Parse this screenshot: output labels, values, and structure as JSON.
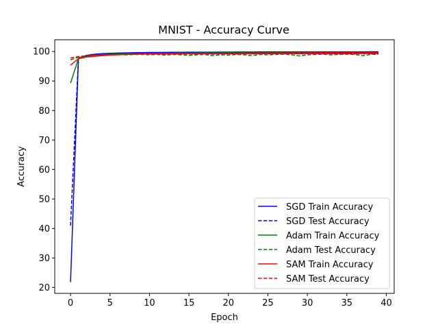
{
  "chart_data": {
    "type": "line",
    "title": "MNIST - Accuracy Curve",
    "xlabel": "Epoch",
    "ylabel": "Accuracy",
    "xlim": [
      -2,
      41
    ],
    "ylim": [
      18,
      104
    ],
    "xticks": [
      0,
      5,
      10,
      15,
      20,
      25,
      30,
      35,
      40
    ],
    "yticks": [
      20,
      30,
      40,
      50,
      60,
      70,
      80,
      90,
      100
    ],
    "grid": false,
    "legend_position": "bottom-right",
    "series": [
      {
        "name": "SGD Train Accuracy",
        "color": "#0000ff",
        "linestyle": "solid",
        "x": [
          0,
          1,
          2,
          3,
          4,
          5,
          6,
          7,
          8,
          9,
          10,
          11,
          12,
          13,
          14,
          15,
          16,
          17,
          18,
          19,
          20,
          21,
          22,
          23,
          24,
          25,
          26,
          27,
          28,
          29,
          30,
          31,
          32,
          33,
          34,
          35,
          36,
          37,
          38,
          39
        ],
        "values": [
          21.8,
          97.5,
          98.7,
          99.1,
          99.3,
          99.4,
          99.5,
          99.55,
          99.6,
          99.65,
          99.7,
          99.7,
          99.72,
          99.75,
          99.76,
          99.78,
          99.8,
          99.8,
          99.8,
          99.82,
          99.83,
          99.84,
          99.85,
          99.85,
          99.86,
          99.86,
          99.87,
          99.87,
          99.88,
          99.88,
          99.89,
          99.89,
          99.9,
          99.9,
          99.9,
          99.9,
          99.91,
          99.91,
          99.92,
          99.92
        ]
      },
      {
        "name": "SGD Test Accuracy",
        "color": "#0000ff",
        "linestyle": "dashed",
        "x": [
          0,
          1,
          2,
          3,
          4,
          5,
          6,
          7,
          8,
          9,
          10,
          11,
          12,
          13,
          14,
          15,
          16,
          17,
          18,
          19,
          20,
          21,
          22,
          23,
          24,
          25,
          26,
          27,
          28,
          29,
          30,
          31,
          32,
          33,
          34,
          35,
          36,
          37,
          38,
          39
        ],
        "values": [
          41.0,
          97.8,
          98.5,
          98.8,
          98.9,
          99.0,
          99.1,
          99.1,
          99.15,
          99.2,
          99.2,
          99.2,
          99.25,
          99.2,
          99.25,
          99.3,
          99.25,
          99.3,
          99.3,
          99.3,
          99.3,
          99.3,
          99.35,
          99.3,
          99.35,
          99.3,
          99.35,
          99.35,
          99.35,
          99.3,
          99.35,
          99.35,
          99.4,
          99.35,
          99.35,
          99.4,
          99.35,
          99.4,
          99.4,
          99.4
        ]
      },
      {
        "name": "Adam Train Accuracy",
        "color": "#008000",
        "linestyle": "solid",
        "x": [
          0,
          1,
          2,
          3,
          4,
          5,
          6,
          7,
          8,
          9,
          10,
          11,
          12,
          13,
          14,
          15,
          16,
          17,
          18,
          19,
          20,
          21,
          22,
          23,
          24,
          25,
          26,
          27,
          28,
          29,
          30,
          31,
          32,
          33,
          34,
          35,
          36,
          37,
          38,
          39
        ],
        "values": [
          89.3,
          97.6,
          98.4,
          98.8,
          99.0,
          99.1,
          99.2,
          99.25,
          99.3,
          99.35,
          99.4,
          99.4,
          99.45,
          99.45,
          99.5,
          99.5,
          99.5,
          99.55,
          99.55,
          99.55,
          99.6,
          99.6,
          99.6,
          99.6,
          99.6,
          99.65,
          99.65,
          99.65,
          99.65,
          99.65,
          99.7,
          99.7,
          99.7,
          99.7,
          99.7,
          99.7,
          99.7,
          99.7,
          99.7,
          99.7
        ]
      },
      {
        "name": "Adam Test Accuracy",
        "color": "#008000",
        "linestyle": "dashed",
        "x": [
          0,
          1,
          2,
          3,
          4,
          5,
          6,
          7,
          8,
          9,
          10,
          11,
          12,
          13,
          14,
          15,
          16,
          17,
          18,
          19,
          20,
          21,
          22,
          23,
          24,
          25,
          26,
          27,
          28,
          29,
          30,
          31,
          32,
          33,
          34,
          35,
          36,
          37,
          38,
          39
        ],
        "values": [
          97.2,
          98.1,
          98.5,
          98.7,
          98.8,
          98.9,
          99.0,
          98.9,
          99.0,
          99.0,
          98.9,
          99.0,
          98.8,
          99.0,
          98.9,
          98.7,
          98.9,
          99.0,
          98.6,
          98.9,
          98.8,
          99.0,
          98.9,
          98.6,
          99.0,
          98.9,
          99.0,
          99.1,
          98.9,
          98.5,
          98.9,
          99.0,
          99.1,
          98.9,
          99.0,
          99.1,
          99.0,
          98.6,
          99.0,
          99.1
        ]
      },
      {
        "name": "SAM Train Accuracy",
        "color": "#ff0000",
        "linestyle": "solid",
        "x": [
          0,
          1,
          2,
          3,
          4,
          5,
          6,
          7,
          8,
          9,
          10,
          11,
          12,
          13,
          14,
          15,
          16,
          17,
          18,
          19,
          20,
          21,
          22,
          23,
          24,
          25,
          26,
          27,
          28,
          29,
          30,
          31,
          32,
          33,
          34,
          35,
          36,
          37,
          38,
          39
        ],
        "values": [
          95.4,
          97.6,
          98.1,
          98.4,
          98.6,
          98.8,
          98.9,
          99.0,
          99.1,
          99.15,
          99.2,
          99.2,
          99.25,
          99.3,
          99.3,
          99.35,
          99.35,
          99.4,
          99.4,
          99.4,
          99.45,
          99.45,
          99.45,
          99.5,
          99.5,
          99.5,
          99.5,
          99.55,
          99.55,
          99.55,
          99.55,
          99.6,
          99.6,
          99.6,
          99.6,
          99.6,
          99.6,
          99.6,
          99.65,
          99.65
        ]
      },
      {
        "name": "SAM Test Accuracy",
        "color": "#ff0000",
        "linestyle": "dashed",
        "x": [
          0,
          1,
          2,
          3,
          4,
          5,
          6,
          7,
          8,
          9,
          10,
          11,
          12,
          13,
          14,
          15,
          16,
          17,
          18,
          19,
          20,
          21,
          22,
          23,
          24,
          25,
          26,
          27,
          28,
          29,
          30,
          31,
          32,
          33,
          34,
          35,
          36,
          37,
          38,
          39
        ],
        "values": [
          97.8,
          98.3,
          98.6,
          98.7,
          98.8,
          98.9,
          99.0,
          99.0,
          99.0,
          99.1,
          99.1,
          99.1,
          99.0,
          99.1,
          99.1,
          99.2,
          99.1,
          99.2,
          99.1,
          99.2,
          99.2,
          99.1,
          99.2,
          99.2,
          99.2,
          99.3,
          99.2,
          99.2,
          99.3,
          99.2,
          99.3,
          99.3,
          99.2,
          99.3,
          99.3,
          99.3,
          99.2,
          99.3,
          99.3,
          99.3
        ]
      }
    ]
  }
}
